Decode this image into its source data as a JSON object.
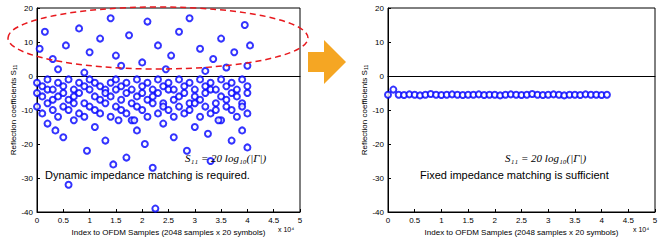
{
  "chart_data": [
    {
      "type": "scatter",
      "x_label": "Index to OFDM Samples (2048 samples x 20 symbols)",
      "y_label": "Reflection coefficients S₁₁",
      "x_scale_label": "x 10⁴",
      "annotations": [
        "S₁₁ = 20 log₁₀(|Γ|)",
        "Dynamic impedance matching is required."
      ],
      "xlim": [
        0,
        5
      ],
      "xticks": [
        0,
        0.5,
        1,
        1.5,
        2,
        2.5,
        3,
        3.5,
        4,
        4.5,
        5
      ],
      "ylim": [
        -40,
        20
      ],
      "yticks": [
        -40,
        -30,
        -20,
        -10,
        0,
        10,
        20
      ],
      "grid": false,
      "marker": "circle",
      "color": "#0000ff",
      "x": [
        0,
        0,
        0,
        0.1,
        0.1,
        0.1,
        0.2,
        0.2,
        0.2,
        0.3,
        0.3,
        0.3,
        0.4,
        0.4,
        0.4,
        0.5,
        0.5,
        0.5,
        0.6,
        0.6,
        0.6,
        0.7,
        0.7,
        0.7,
        0.8,
        0.8,
        0.8,
        0.9,
        0.9,
        0.9,
        1.0,
        1.0,
        1.0,
        1.1,
        1.1,
        1.1,
        1.2,
        1.2,
        1.2,
        1.3,
        1.3,
        1.3,
        1.4,
        1.4,
        1.4,
        1.5,
        1.5,
        1.5,
        1.6,
        1.6,
        1.6,
        1.7,
        1.7,
        1.7,
        1.8,
        1.8,
        1.8,
        1.9,
        1.9,
        1.9,
        2.0,
        2.0,
        2.0,
        2.1,
        2.1,
        2.1,
        2.2,
        2.2,
        2.2,
        2.3,
        2.3,
        2.3,
        2.4,
        2.4,
        2.4,
        2.5,
        2.5,
        2.5,
        2.6,
        2.6,
        2.6,
        2.7,
        2.7,
        2.7,
        2.8,
        2.8,
        2.8,
        2.9,
        2.9,
        2.9,
        3.0,
        3.0,
        3.0,
        3.1,
        3.1,
        3.1,
        3.2,
        3.2,
        3.2,
        3.3,
        3.3,
        3.3,
        3.4,
        3.4,
        3.4,
        3.5,
        3.5,
        3.5,
        3.6,
        3.6,
        3.6,
        3.7,
        3.7,
        3.7,
        3.8,
        3.8,
        3.8,
        3.9,
        3.9,
        3.9,
        4.0,
        4.0,
        4.0,
        0.05,
        0.15,
        0.3,
        0.55,
        0.8,
        1.0,
        1.2,
        1.4,
        1.5,
        1.75,
        2.0,
        2.1,
        2.3,
        2.55,
        2.7,
        2.9,
        3.1,
        3.35,
        3.5,
        3.75,
        3.95,
        4.05,
        0.4,
        0.9,
        1.6,
        2.45,
        3.2,
        3.6,
        4.0,
        0.2,
        0.5,
        0.7,
        0.95,
        1.1,
        1.3,
        1.55,
        1.7,
        1.9,
        2.05,
        2.2,
        2.25,
        2.4,
        2.6,
        2.85,
        3.0,
        3.25,
        3.45,
        3.7,
        3.9,
        4.0,
        0.6,
        1.45,
        3.3,
        0.35,
        1.85
      ],
      "values": [
        -2,
        -5,
        -9,
        -3,
        -6,
        -11,
        -1,
        -4,
        -8,
        -4,
        -7,
        -10,
        -2,
        -6,
        -12,
        -3,
        -5,
        -9,
        -1,
        -7,
        -10,
        -4,
        -6,
        -8,
        -2,
        -5,
        -11,
        -3,
        -8,
        -12,
        -1,
        -4,
        -9,
        -2,
        -6,
        -10,
        -3,
        -7,
        -11,
        -4,
        -5,
        -8,
        -2,
        -6,
        -12,
        -1,
        -4,
        -9,
        -3,
        -7,
        -10,
        -2,
        -5,
        -11,
        -4,
        -8,
        -13,
        -1,
        -6,
        -9,
        -3,
        -5,
        -10,
        -2,
        -7,
        -12,
        -4,
        -6,
        -8,
        -1,
        -5,
        -11,
        -3,
        -8,
        -9,
        -2,
        -4,
        -10,
        -4,
        -7,
        -12,
        -1,
        -6,
        -9,
        -3,
        -5,
        -11,
        -2,
        -8,
        -10,
        -4,
        -6,
        -8,
        -1,
        -7,
        -12,
        -3,
        -5,
        -9,
        -2,
        -4,
        -11,
        -4,
        -8,
        -10,
        -1,
        -6,
        -13,
        -3,
        -7,
        -9,
        -2,
        -5,
        -10,
        -4,
        -6,
        -12,
        -1,
        -8,
        -9,
        -3,
        -5,
        -11,
        8,
        13,
        5,
        9,
        14,
        7,
        11,
        17,
        6,
        12,
        4,
        16,
        9,
        6,
        13,
        17,
        8,
        5,
        11,
        7,
        15,
        9,
        2,
        1,
        3,
        2,
        1.5,
        2.5,
        3,
        -14,
        -18,
        -13,
        -22,
        -15,
        -19,
        -13,
        -24,
        -16,
        -20,
        -27,
        -39,
        -14,
        -18,
        -22,
        -15,
        -17,
        -13,
        -19,
        -16,
        -21,
        -32,
        -26,
        -25,
        -16,
        -13
      ]
    },
    {
      "type": "scatter",
      "x_label": "Index to OFDM Samples (2048 samples x 20 symbols)",
      "y_label": "Reflection coefficients S₁₁",
      "x_scale_label": "x 10⁴",
      "annotations": [
        "S₁₁ = 20 log₁₀(|Γ|)",
        "Fixed impedance matching is sufficient"
      ],
      "xlim": [
        0,
        5
      ],
      "xticks": [
        0,
        0.5,
        1,
        1.5,
        2,
        2.5,
        3,
        3.5,
        4,
        4.5,
        5
      ],
      "ylim": [
        -40,
        20
      ],
      "yticks": [
        -40,
        -30,
        -20,
        -10,
        0,
        10,
        20
      ],
      "grid": false,
      "marker": "circle",
      "color": "#0000ff",
      "x": [
        0,
        0.1,
        0.2,
        0.3,
        0.4,
        0.5,
        0.6,
        0.7,
        0.8,
        0.9,
        1.0,
        1.1,
        1.2,
        1.3,
        1.4,
        1.5,
        1.6,
        1.7,
        1.8,
        1.9,
        2.0,
        2.1,
        2.2,
        2.3,
        2.4,
        2.5,
        2.6,
        2.7,
        2.8,
        2.9,
        3.0,
        3.1,
        3.2,
        3.3,
        3.4,
        3.5,
        3.6,
        3.7,
        3.8,
        3.9,
        4.0,
        4.1
      ],
      "values": [
        -5.5,
        -4,
        -5.5,
        -5.6,
        -5.4,
        -5.5,
        -5.7,
        -5.5,
        -5.3,
        -5.5,
        -5.6,
        -5.5,
        -5.4,
        -5.5,
        -5.6,
        -5.5,
        -5.5,
        -5.4,
        -5.6,
        -5.5,
        -5.5,
        -5.7,
        -5.5,
        -5.4,
        -5.5,
        -5.6,
        -5.5,
        -5.3,
        -5.5,
        -5.6,
        -5.5,
        -5.4,
        -5.5,
        -5.7,
        -5.5,
        -5.5,
        -5.6,
        -5.4,
        -5.5,
        -5.5,
        -5.6,
        -5.5
      ]
    }
  ]
}
